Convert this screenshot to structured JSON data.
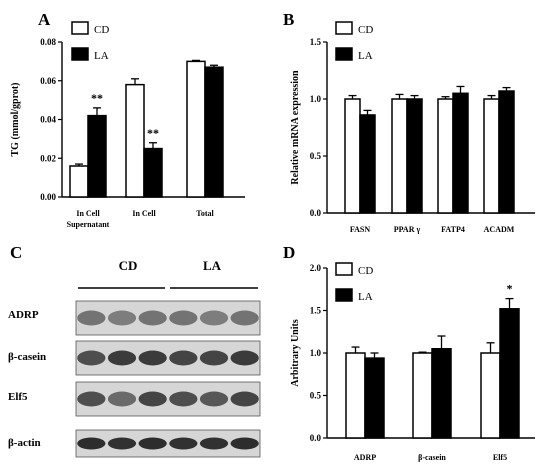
{
  "panels": {
    "a": "A",
    "b": "B",
    "c": "C",
    "d": "D"
  },
  "legend": {
    "cd": "CD",
    "la": "LA"
  },
  "chart_data": [
    {
      "panel": "A",
      "type": "bar",
      "ylabel": "TG (mmol/gprot)",
      "ylim": [
        0,
        0.08
      ],
      "yticks": [
        "0.00",
        "0.02",
        "0.04",
        "0.06",
        "0.08"
      ],
      "categories": [
        [
          "In Cell",
          "Supernatant"
        ],
        [
          "In Cell"
        ],
        [
          "Total"
        ]
      ],
      "series": [
        {
          "name": "CD",
          "values": [
            0.016,
            0.058,
            0.07
          ],
          "errors": [
            0.001,
            0.003,
            0.0005
          ],
          "color": "#ffffff"
        },
        {
          "name": "LA",
          "values": [
            0.042,
            0.025,
            0.067
          ],
          "errors": [
            0.004,
            0.003,
            0.001
          ],
          "color": "#000000"
        }
      ],
      "annotations": [
        {
          "category": 0,
          "series": 1,
          "text": "**"
        },
        {
          "category": 1,
          "series": 1,
          "text": "**"
        }
      ],
      "legend": "top-left"
    },
    {
      "panel": "B",
      "type": "bar",
      "ylabel": "Relative mRNA expression",
      "ylim": [
        0,
        1.5
      ],
      "yticks": [
        "0.0",
        "0.5",
        "1.0",
        "1.5"
      ],
      "categories": [
        [
          "FASN"
        ],
        [
          "PPAR γ"
        ],
        [
          "FATP4"
        ],
        [
          "ACADM"
        ]
      ],
      "series": [
        {
          "name": "CD",
          "values": [
            1.0,
            1.0,
            1.0,
            1.0
          ],
          "errors": [
            0.03,
            0.04,
            0.02,
            0.03
          ],
          "color": "#ffffff"
        },
        {
          "name": "LA",
          "values": [
            0.86,
            1.0,
            1.05,
            1.07
          ],
          "errors": [
            0.04,
            0.03,
            0.06,
            0.03
          ],
          "color": "#000000"
        }
      ],
      "annotations": [],
      "legend": "top-left"
    },
    {
      "panel": "D",
      "type": "bar",
      "ylabel": "Arbitrary Units",
      "ylim": [
        0,
        2.0
      ],
      "yticks": [
        "0.0",
        "0.5",
        "1.0",
        "1.5",
        "2.0"
      ],
      "categories": [
        [
          "ADRP"
        ],
        [
          "β-casein"
        ],
        [
          "Elf5"
        ]
      ],
      "series": [
        {
          "name": "CD",
          "values": [
            1.0,
            1.0,
            1.0
          ],
          "errors": [
            0.07,
            0.01,
            0.12
          ],
          "color": "#ffffff"
        },
        {
          "name": "LA",
          "values": [
            0.94,
            1.05,
            1.52
          ],
          "errors": [
            0.06,
            0.15,
            0.12
          ],
          "color": "#000000"
        }
      ],
      "annotations": [
        {
          "category": 2,
          "series": 1,
          "text": "*"
        }
      ],
      "legend": "top-left"
    }
  ],
  "blot": {
    "groups": [
      "CD",
      "LA"
    ],
    "rows": [
      "ADRP",
      "β-casein",
      "Elf5",
      "β-actin"
    ],
    "lanes": 6
  }
}
